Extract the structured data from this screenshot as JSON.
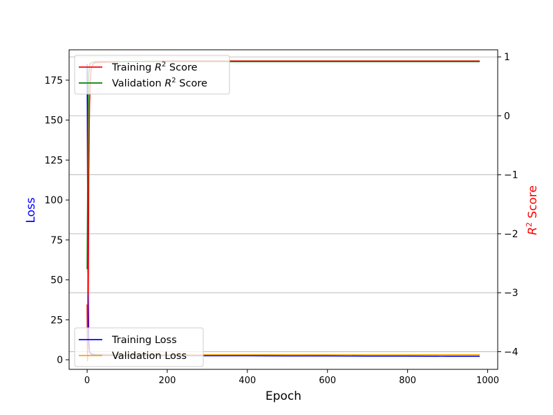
{
  "chart_data": {
    "type": "line",
    "xlabel": "Epoch",
    "ylabel_left": "Loss",
    "ylabel_right_base": "R",
    "ylabel_right_sup": "2",
    "ylabel_right_rest": " Score",
    "xlim": [
      -45,
      1025
    ],
    "ylim_left": [
      -6,
      194
    ],
    "ylim_right": [
      -4.3,
      1.12
    ],
    "x_ticks": [
      0,
      200,
      400,
      600,
      800,
      1000
    ],
    "x_tick_labels": [
      "0",
      "200",
      "400",
      "600",
      "800",
      "1000"
    ],
    "y_left_ticks": [
      0,
      25,
      50,
      75,
      100,
      125,
      150,
      175
    ],
    "y_left_tick_labels": [
      "0",
      "25",
      "50",
      "75",
      "100",
      "125",
      "150",
      "175"
    ],
    "y_right_ticks": [
      -4,
      -3,
      -2,
      -1,
      0,
      1
    ],
    "y_right_tick_labels": [
      "−4",
      "−3",
      "−2",
      "−1",
      "0",
      "1"
    ],
    "grid": "right-axis horizontal",
    "colors": {
      "training_loss": "#0000ff",
      "validation_loss": "#ffa500",
      "training_r2": "#ff0000",
      "validation_r2": "#008000",
      "label_loss": "#0000ff",
      "label_r2": "#ff0000"
    },
    "series": [
      {
        "name": "Training Loss",
        "axis": "left",
        "color": "#0000ff",
        "x": [
          0,
          2,
          4,
          6,
          10,
          20,
          50,
          100,
          200,
          300,
          400,
          500,
          600,
          700,
          800,
          900,
          980
        ],
        "y": [
          185,
          60,
          12,
          5,
          3.5,
          3.0,
          2.8,
          2.7,
          2.6,
          2.5,
          2.5,
          2.4,
          2.4,
          2.3,
          2.3,
          2.2,
          2.2
        ]
      },
      {
        "name": "Validation Loss",
        "axis": "left",
        "color": "#ffa500",
        "x": [
          0,
          2,
          4,
          6,
          10,
          20,
          50,
          100,
          200,
          300,
          400,
          500,
          600,
          700,
          800,
          900,
          980
        ],
        "y": [
          180,
          55,
          10,
          4.5,
          3.8,
          3.5,
          3.4,
          3.3,
          3.3,
          3.2,
          3.2,
          3.2,
          3.1,
          3.1,
          3.1,
          3.1,
          3.1
        ]
      },
      {
        "name": "Training R² Score",
        "name_base": "Training R",
        "name_sup": "2",
        "name_rest": " Score",
        "axis": "right",
        "color": "#ff0000",
        "x": [
          0,
          1,
          2,
          3,
          4,
          6,
          8,
          10,
          15,
          20,
          50,
          100,
          200,
          400,
          600,
          800,
          980
        ],
        "y": [
          -3.2,
          -4.15,
          -2.7,
          -3.0,
          -1.0,
          0.2,
          0.6,
          0.8,
          0.88,
          0.9,
          0.91,
          0.92,
          0.93,
          0.93,
          0.93,
          0.93,
          0.93
        ]
      },
      {
        "name": "Validation R² Score",
        "name_base": "Validation R",
        "name_sup": "2",
        "name_rest": " Score",
        "axis": "right",
        "color": "#008000",
        "x": [
          0,
          1,
          2,
          3,
          4,
          6,
          8,
          10,
          15,
          20,
          50,
          100,
          200,
          400,
          600,
          800,
          980
        ],
        "y": [
          -2.6,
          -1.5,
          -0.2,
          0.4,
          0.7,
          0.85,
          0.89,
          0.9,
          0.91,
          0.92,
          0.92,
          0.92,
          0.92,
          0.92,
          0.92,
          0.92,
          0.92
        ]
      }
    ],
    "legends": [
      {
        "placement": "upper-left",
        "entries": [
          "Training R² Score",
          "Validation R² Score"
        ]
      },
      {
        "placement": "lower-left",
        "entries": [
          "Training Loss",
          "Validation Loss"
        ]
      }
    ]
  }
}
